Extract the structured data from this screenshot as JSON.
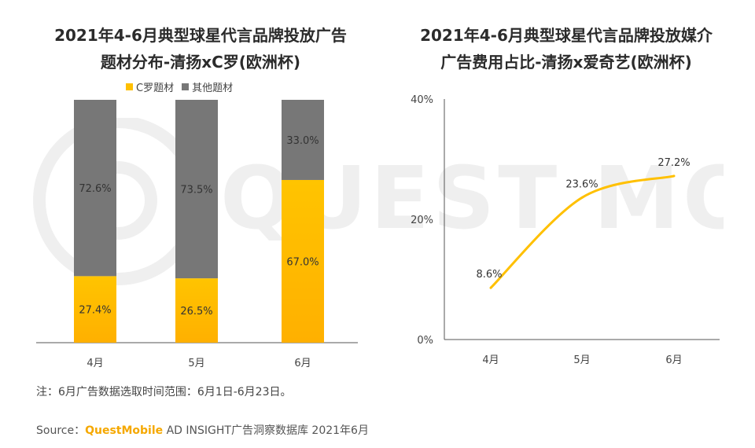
{
  "left_chart": {
    "title_line1": "2021年4-6月典型球星代言品牌投放广告",
    "title_line2": "题材分布-清扬xC罗(欧洲杯)"
  },
  "right_chart": {
    "title_line1": "2021年4-6月典型球星代言品牌投放媒介",
    "title_line2": "广告费用占比-清扬x爱奇艺(欧洲杯)"
  },
  "chart_data": [
    {
      "type": "bar",
      "stacked": true,
      "title": "2021年4-6月典型球星代言品牌投放广告题材分布-清扬xC罗(欧洲杯)",
      "categories": [
        "4月",
        "5月",
        "6月"
      ],
      "series": [
        {
          "name": "C罗题材",
          "values": [
            27.4,
            26.5,
            67.0
          ],
          "labels": [
            "27.4%",
            "26.5%",
            "67.0%"
          ],
          "color": "#ffc000"
        },
        {
          "name": "其他题材",
          "values": [
            72.6,
            73.5,
            33.0
          ],
          "labels": [
            "72.6%",
            "73.5%",
            "33.0%"
          ],
          "color": "#777777"
        }
      ],
      "ylim": [
        0,
        100
      ],
      "legend": "top-center"
    },
    {
      "type": "line",
      "title": "2021年4-6月典型球星代言品牌投放媒介广告费用占比-清扬x爱奇艺(欧洲杯)",
      "categories": [
        "4月",
        "5月",
        "6月"
      ],
      "values": [
        8.6,
        23.6,
        27.2
      ],
      "labels": [
        "8.6%",
        "23.6%",
        "27.2%"
      ],
      "yticks": [
        0,
        20,
        40
      ],
      "ytick_labels": [
        "0%",
        "20%",
        "40%"
      ],
      "ylim": [
        0,
        40
      ],
      "color": "#ffc000"
    }
  ],
  "footer": {
    "note": "注：6月广告数据选取时间范围：6月1日-6月23日。",
    "source_prefix": "Source：",
    "source_brand": "QuestMobile",
    "source_suffix": " AD INSIGHT广告洞察数据库 2021年6月"
  },
  "watermark": {
    "text": "QUEST MOBILE"
  }
}
